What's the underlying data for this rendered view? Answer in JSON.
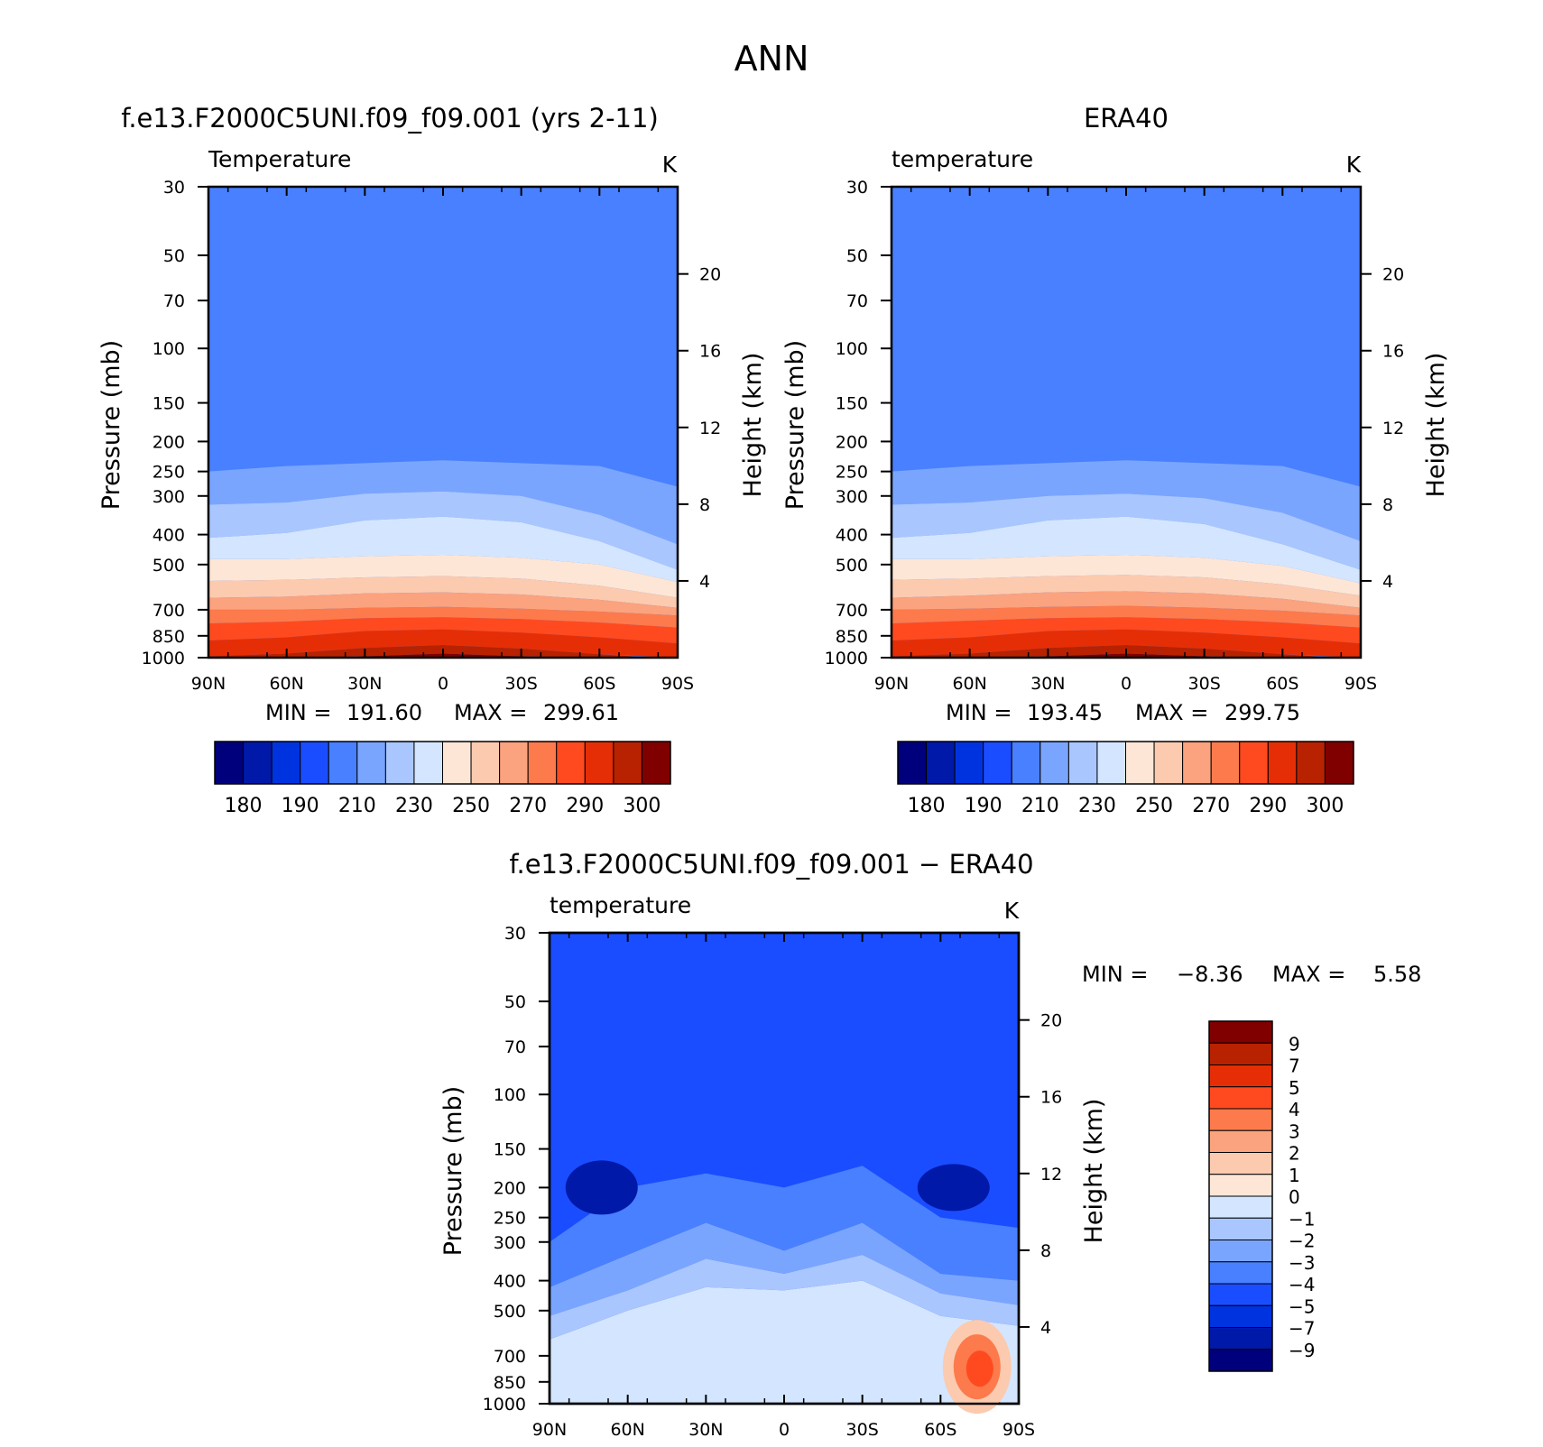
{
  "page_title": "ANN",
  "colors": {
    "temperature_scale": [
      "#00007d",
      "#0019a9",
      "#0033e0",
      "#1a4dff",
      "#4880ff",
      "#7aa5ff",
      "#a9c6ff",
      "#d4e6ff",
      "#fde6d6",
      "#fccaaf",
      "#fba27e",
      "#fc7a4c",
      "#ff4a1f",
      "#e62e06",
      "#b82200",
      "#800000"
    ],
    "difference_scale": [
      "#00007d",
      "#0019a9",
      "#0033e0",
      "#1a4dff",
      "#4880ff",
      "#7aa5ff",
      "#a9c6ff",
      "#d4e6ff",
      "#fde6d6",
      "#fccaaf",
      "#fba27e",
      "#fc7a4c",
      "#ff4a1f",
      "#e62e06",
      "#b82200",
      "#800000"
    ]
  },
  "chart_data": [
    {
      "type": "heatmap",
      "title": "f.e13.F2000C5UNI.f09_f09.001 (yrs 2-11)",
      "field_label": "Temperature",
      "units": "K",
      "xlabel": "",
      "ylabel": "Pressure (mb)",
      "ylabel_right": "Height (km)",
      "x": [
        "90N",
        "60N",
        "30N",
        "0",
        "30S",
        "60S",
        "90S"
      ],
      "y_pressure_ticks": [
        30,
        50,
        70,
        100,
        150,
        200,
        250,
        300,
        400,
        500,
        700,
        850,
        1000
      ],
      "y_height_ticks": [
        20,
        16,
        12,
        8,
        4
      ],
      "ylim": [
        1000,
        30
      ],
      "min_label": "MIN =",
      "min": "191.60",
      "max_label": "MAX =",
      "max": "299.61",
      "colorbar_labels": [
        "180",
        "190",
        "210",
        "230",
        "250",
        "270",
        "290",
        "300"
      ],
      "lat_nodes": [
        -90,
        -60,
        -30,
        0,
        30,
        60,
        90
      ],
      "band_edges": [
        [
          250,
          240,
          235,
          230,
          235,
          240,
          280
        ],
        [
          320,
          315,
          295,
          290,
          300,
          345,
          430
        ],
        [
          410,
          395,
          360,
          350,
          365,
          420,
          520
        ],
        [
          480,
          480,
          470,
          465,
          475,
          500,
          570
        ],
        [
          565,
          560,
          550,
          545,
          555,
          585,
          640
        ],
        [
          640,
          635,
          620,
          615,
          625,
          650,
          690
        ],
        [
          700,
          700,
          690,
          685,
          695,
          710,
          730
        ],
        [
          775,
          765,
          745,
          740,
          750,
          770,
          800
        ],
        [
          880,
          860,
          820,
          810,
          830,
          860,
          900
        ],
        [
          990,
          970,
          930,
          910,
          935,
          975,
          1010
        ],
        [
          1050,
          1020,
          990,
          970,
          990,
          1020,
          1050
        ],
        [
          1080,
          1060,
          1030,
          1010,
          1030,
          1060,
          1080
        ]
      ],
      "start_band": 4
    },
    {
      "type": "heatmap",
      "title": "ERA40",
      "field_label": "temperature",
      "units": "K",
      "xlabel": "",
      "ylabel": "Pressure (mb)",
      "ylabel_right": "Height (km)",
      "x": [
        "90N",
        "60N",
        "30N",
        "0",
        "30S",
        "60S",
        "90S"
      ],
      "y_pressure_ticks": [
        30,
        50,
        70,
        100,
        150,
        200,
        250,
        300,
        400,
        500,
        700,
        850,
        1000
      ],
      "y_height_ticks": [
        20,
        16,
        12,
        8,
        4
      ],
      "ylim": [
        1000,
        30
      ],
      "min_label": "MIN =",
      "min": "193.45",
      "max_label": "MAX =",
      "max": "299.75",
      "colorbar_labels": [
        "180",
        "190",
        "210",
        "230",
        "250",
        "270",
        "290",
        "300"
      ],
      "lat_nodes": [
        -90,
        -60,
        -30,
        0,
        30,
        60,
        90
      ],
      "band_edges": [
        [
          250,
          240,
          235,
          230,
          235,
          240,
          280
        ],
        [
          320,
          315,
          300,
          295,
          305,
          340,
          420
        ],
        [
          410,
          395,
          360,
          350,
          370,
          430,
          520
        ],
        [
          480,
          480,
          470,
          465,
          475,
          505,
          575
        ],
        [
          560,
          555,
          545,
          540,
          550,
          580,
          630
        ],
        [
          640,
          630,
          615,
          610,
          620,
          645,
          690
        ],
        [
          700,
          695,
          685,
          680,
          690,
          705,
          730
        ],
        [
          775,
          760,
          745,
          740,
          750,
          770,
          800
        ],
        [
          880,
          860,
          820,
          810,
          830,
          860,
          900
        ],
        [
          990,
          970,
          930,
          910,
          935,
          975,
          1010
        ],
        [
          1050,
          1020,
          990,
          970,
          990,
          1020,
          1050
        ],
        [
          1080,
          1060,
          1030,
          1010,
          1030,
          1060,
          1080
        ]
      ],
      "start_band": 4
    },
    {
      "type": "heatmap",
      "title": "f.e13.F2000C5UNI.f09_f09.001 − ERA40",
      "field_label": "temperature",
      "units": "K",
      "xlabel": "",
      "ylabel": "Pressure (mb)",
      "ylabel_right": "Height (km)",
      "x": [
        "90N",
        "60N",
        "30N",
        "0",
        "30S",
        "60S",
        "90S"
      ],
      "y_pressure_ticks": [
        30,
        50,
        70,
        100,
        150,
        200,
        250,
        300,
        400,
        500,
        700,
        850,
        1000
      ],
      "y_height_ticks": [
        20,
        16,
        12,
        8,
        4
      ],
      "ylim": [
        1000,
        30
      ],
      "min_label": "MIN =",
      "min": "−8.36",
      "max_label": "MAX =",
      "max": "5.58",
      "colorbar_labels": [
        "9",
        "7",
        "5",
        "4",
        "3",
        "2",
        "1",
        "0",
        "−1",
        "−2",
        "−3",
        "−4",
        "−5",
        "−7",
        "−9"
      ],
      "lat_nodes": [
        -90,
        -60,
        -30,
        0,
        30,
        60,
        90
      ],
      "band_edges": [
        [
          300,
          200,
          180,
          200,
          170,
          250,
          270
        ],
        [
          420,
          330,
          260,
          320,
          260,
          380,
          400
        ],
        [
          520,
          430,
          340,
          380,
          330,
          440,
          480
        ],
        [
          620,
          500,
          420,
          430,
          400,
          520,
          560
        ],
        [
          1080,
          1080,
          1080,
          1080,
          1080,
          1080,
          1080
        ]
      ],
      "start_band": 3
    }
  ]
}
